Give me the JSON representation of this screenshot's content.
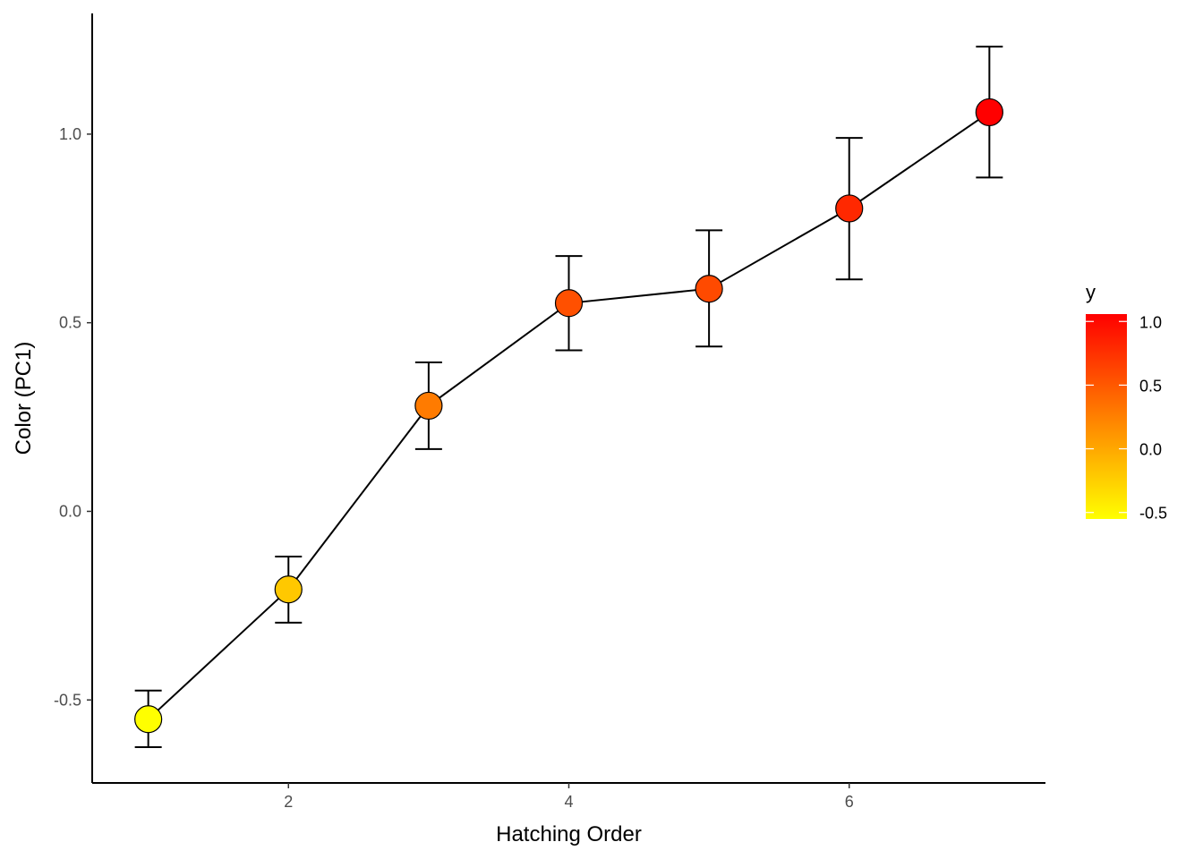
{
  "chart_data": {
    "type": "line",
    "title": "",
    "xlabel": "Hatching Order",
    "ylabel": "Color (PC1)",
    "xlim": [
      0.6,
      7.4
    ],
    "ylim": [
      -0.72,
      1.32
    ],
    "x_ticks": [
      2,
      4,
      6
    ],
    "x_tick_labels": [
      "2",
      "4",
      "6"
    ],
    "y_ticks": [
      -0.5,
      0.0,
      0.5,
      1.0
    ],
    "y_tick_labels": [
      "-0.5",
      "0.0",
      "0.5",
      "1.0"
    ],
    "grid": false,
    "points": [
      {
        "x": 1,
        "y": -0.551,
        "ymin": -0.625,
        "ymax": -0.475
      },
      {
        "x": 2,
        "y": -0.207,
        "ymin": -0.295,
        "ymax": -0.12
      },
      {
        "x": 3,
        "y": 0.28,
        "ymin": 0.165,
        "ymax": 0.395
      },
      {
        "x": 4,
        "y": 0.552,
        "ymin": 0.427,
        "ymax": 0.677
      },
      {
        "x": 5,
        "y": 0.59,
        "ymin": 0.437,
        "ymax": 0.745
      },
      {
        "x": 6,
        "y": 0.803,
        "ymin": 0.615,
        "ymax": 0.99
      },
      {
        "x": 7,
        "y": 1.058,
        "ymin": 0.885,
        "ymax": 1.232
      }
    ],
    "line_color": "#000000",
    "point_outline": "#000000",
    "legend": {
      "title": "y",
      "placement": "right",
      "type": "colorbar",
      "low_color": "#ffff00",
      "high_color": "#ff0000",
      "range": [
        -0.551,
        1.058
      ],
      "ticks": [
        -0.5,
        0.0,
        0.5,
        1.0
      ],
      "tick_labels": [
        "-0.5",
        "0.0",
        "0.5",
        "1.0"
      ]
    }
  }
}
